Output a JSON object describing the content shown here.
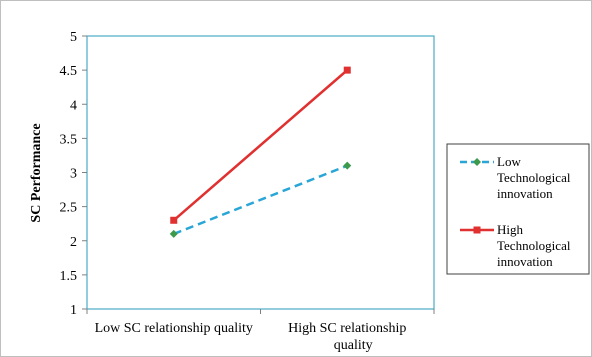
{
  "chart_data": {
    "type": "line",
    "ylabel": "SC Performance",
    "xlabel": "",
    "title": "",
    "ylim": [
      1,
      5
    ],
    "yticks": [
      "1",
      "1.5",
      "2",
      "2.5",
      "3",
      "3.5",
      "4",
      "4.5",
      "5"
    ],
    "categories": [
      [
        "Low SC relationship quality"
      ],
      [
        "High SC relationship",
        "quality"
      ]
    ],
    "grid": false,
    "legend_position": "right",
    "series": [
      {
        "name": "Low Technological innovation",
        "legend_lines": [
          "Low",
          "Technological",
          "innovation"
        ],
        "values": [
          2.1,
          3.1
        ],
        "color": "#2aa6d6",
        "marker_color": "#3c9a4a",
        "line_style": "dashed",
        "marker": "diamond"
      },
      {
        "name": "High Technological innovation",
        "legend_lines": [
          "High",
          "Technological",
          "innovation"
        ],
        "values": [
          2.3,
          4.5
        ],
        "color": "#e03030",
        "marker_color": "#e03030",
        "line_style": "solid",
        "marker": "square"
      }
    ],
    "colors": {
      "plot_border": "#4bacc6",
      "axis": "#808080"
    }
  }
}
